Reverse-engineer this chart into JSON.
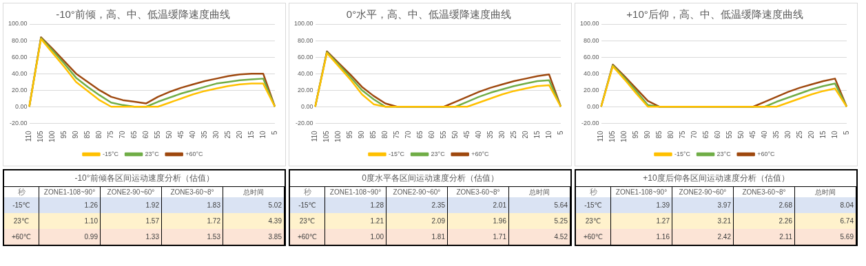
{
  "chart_data": [
    {
      "type": "line",
      "title": "-10°前倾，高、中、低温缓降速度曲线",
      "categories": [
        "110",
        "105",
        "100",
        "95",
        "90",
        "85",
        "80",
        "75",
        "70",
        "65",
        "60",
        "55",
        "50",
        "45",
        "40",
        "35",
        "30",
        "25",
        "20",
        "15",
        "10",
        "5"
      ],
      "ylim": [
        -20,
        100
      ],
      "yticks": [
        {
          "value": -20,
          "label": "-20.00"
        },
        {
          "value": 0,
          "label": "0.00"
        },
        {
          "value": 20,
          "label": "20.00"
        },
        {
          "value": 40,
          "label": "40.00"
        },
        {
          "value": 60,
          "label": "60.00"
        },
        {
          "value": 80,
          "label": "80.00"
        },
        {
          "value": 100,
          "label": "100.00"
        }
      ],
      "grid": "y",
      "legend": "bottom",
      "marker": "none",
      "line_style": "solid",
      "series": [
        {
          "name": "-15°C",
          "color": "#ffc000",
          "values": [
            0,
            82,
            65,
            48,
            30,
            19,
            8,
            0,
            0,
            0,
            0,
            0,
            5,
            10,
            15,
            19,
            22,
            25,
            27,
            28,
            28,
            0
          ]
        },
        {
          "name": "23°C",
          "color": "#70ad47",
          "values": [
            0,
            83,
            68,
            52,
            35,
            24,
            14,
            5,
            2,
            0,
            0,
            6,
            11,
            16,
            20,
            24,
            28,
            30,
            32,
            33,
            34,
            0
          ]
        },
        {
          "name": "+60°C",
          "color": "#9e480e",
          "values": [
            0,
            84,
            70,
            55,
            40,
            30,
            20,
            12,
            8,
            6,
            4,
            12,
            18,
            23,
            27,
            31,
            34,
            37,
            39,
            40,
            40,
            0
          ]
        }
      ]
    },
    {
      "type": "line",
      "title": "0°水平，高、中、低温缓降速度曲线",
      "categories": [
        "110",
        "105",
        "100",
        "95",
        "90",
        "85",
        "80",
        "75",
        "70",
        "65",
        "60",
        "55",
        "50",
        "45",
        "40",
        "35",
        "30",
        "25",
        "20",
        "15",
        "10",
        "5"
      ],
      "ylim": [
        -20,
        100
      ],
      "yticks": [
        {
          "value": -20,
          "label": "-20.00"
        },
        {
          "value": 0,
          "label": "0.00"
        },
        {
          "value": 20,
          "label": "20.00"
        },
        {
          "value": 40,
          "label": "40.00"
        },
        {
          "value": 60,
          "label": "60.00"
        },
        {
          "value": 80,
          "label": "80.00"
        },
        {
          "value": 100,
          "label": "100.00"
        }
      ],
      "grid": "y",
      "legend": "bottom",
      "marker": "none",
      "line_style": "solid",
      "series": [
        {
          "name": "-15°C",
          "color": "#ffc000",
          "values": [
            0,
            65,
            49,
            33,
            15,
            3,
            0,
            0,
            0,
            0,
            0,
            0,
            0,
            0,
            5,
            10,
            15,
            19,
            22,
            25,
            26,
            0
          ]
        },
        {
          "name": "23°C",
          "color": "#70ad47",
          "values": [
            0,
            66,
            51,
            36,
            20,
            9,
            0,
            0,
            0,
            0,
            0,
            0,
            0,
            6,
            12,
            17,
            21,
            25,
            28,
            31,
            32,
            0
          ]
        },
        {
          "name": "+60°C",
          "color": "#9e480e",
          "values": [
            0,
            67,
            53,
            39,
            24,
            13,
            4,
            0,
            0,
            0,
            0,
            0,
            6,
            12,
            18,
            23,
            27,
            31,
            34,
            37,
            39,
            0
          ]
        }
      ]
    },
    {
      "type": "line",
      "title": "+10°后仰，高、中、低温缓降速度曲线",
      "categories": [
        "110",
        "105",
        "100",
        "95",
        "90",
        "85",
        "80",
        "75",
        "70",
        "65",
        "60",
        "55",
        "50",
        "45",
        "40",
        "35",
        "30",
        "25",
        "20",
        "15",
        "10",
        "5"
      ],
      "ylim": [
        -20,
        100
      ],
      "yticks": [
        {
          "value": -20,
          "label": "-20.00"
        },
        {
          "value": 0,
          "label": "0.00"
        },
        {
          "value": 20,
          "label": "20.00"
        },
        {
          "value": 40,
          "label": "40.00"
        },
        {
          "value": 60,
          "label": "60.00"
        },
        {
          "value": 80,
          "label": "80.00"
        },
        {
          "value": 100,
          "label": "100.00"
        }
      ],
      "grid": "y",
      "legend": "bottom",
      "marker": "none",
      "line_style": "solid",
      "series": [
        {
          "name": "-15°C",
          "color": "#ffc000",
          "values": [
            0,
            49,
            33,
            16,
            0,
            0,
            0,
            0,
            0,
            0,
            0,
            0,
            0,
            0,
            0,
            0,
            5,
            10,
            15,
            19,
            22,
            0
          ]
        },
        {
          "name": "23°C",
          "color": "#70ad47",
          "values": [
            0,
            50,
            35,
            19,
            2,
            0,
            0,
            0,
            0,
            0,
            0,
            0,
            0,
            0,
            0,
            6,
            11,
            16,
            21,
            25,
            28,
            0
          ]
        },
        {
          "name": "+60°C",
          "color": "#9e480e",
          "values": [
            0,
            51,
            37,
            22,
            7,
            0,
            0,
            0,
            0,
            0,
            0,
            0,
            0,
            0,
            6,
            12,
            18,
            23,
            27,
            31,
            34,
            0
          ]
        }
      ]
    },
    {
      "type": "heatmap",
      "data_labels": true,
      "title": "-10°前倾各区间运动速度分析（估值）",
      "ylabel": "秒",
      "categories": [
        "ZONE1-108~90°",
        "ZONE2-90~60°",
        "ZONE3-60~8°",
        "总时间"
      ],
      "y_categories": [
        "-15℃",
        "23℃",
        "+60℃"
      ],
      "colors": [
        "#dae3f3",
        "#fff2cc",
        "#fce4d6"
      ],
      "cells": [
        [
          1.26,
          1.92,
          1.83,
          5.02
        ],
        [
          1.1,
          1.57,
          1.72,
          4.39
        ],
        [
          0.99,
          1.33,
          1.53,
          3.85
        ]
      ],
      "cell_labels": [
        [
          "1.26",
          "1.92",
          "1.83",
          "5.02"
        ],
        [
          "1.10",
          "1.57",
          "1.72",
          "4.39"
        ],
        [
          "0.99",
          "1.33",
          "1.53",
          "3.85"
        ]
      ]
    },
    {
      "type": "heatmap",
      "data_labels": true,
      "title": "0度水平各区间运动速度分析（估值）",
      "ylabel": "秒",
      "categories": [
        "ZONE1-108~90°",
        "ZONE2-90~60°",
        "ZONE3-60~8°",
        "总时间"
      ],
      "y_categories": [
        "-15℃",
        "23℃",
        "+60℃"
      ],
      "colors": [
        "#dae3f3",
        "#fff2cc",
        "#fce4d6"
      ],
      "cells": [
        [
          1.28,
          2.35,
          2.01,
          5.64
        ],
        [
          1.21,
          2.09,
          1.96,
          5.25
        ],
        [
          1.0,
          1.81,
          1.71,
          4.52
        ]
      ],
      "cell_labels": [
        [
          "1.28",
          "2.35",
          "2.01",
          "5.64"
        ],
        [
          "1.21",
          "2.09",
          "1.96",
          "5.25"
        ],
        [
          "1.00",
          "1.81",
          "1.71",
          "4.52"
        ]
      ]
    },
    {
      "type": "heatmap",
      "data_labels": true,
      "title": "+10度后仰各区间运动速度分析（估值）",
      "ylabel": "秒",
      "categories": [
        "ZONE1-108~90°",
        "ZONE2-90~60°",
        "ZONE3-60~8°",
        "总时间"
      ],
      "y_categories": [
        "-15℃",
        "23℃",
        "+60℃"
      ],
      "colors": [
        "#dae3f3",
        "#fff2cc",
        "#fce4d6"
      ],
      "cells": [
        [
          1.39,
          3.97,
          2.68,
          8.04
        ],
        [
          1.27,
          3.21,
          2.26,
          6.74
        ],
        [
          1.16,
          2.42,
          2.11,
          5.69
        ]
      ]
    }
  ]
}
